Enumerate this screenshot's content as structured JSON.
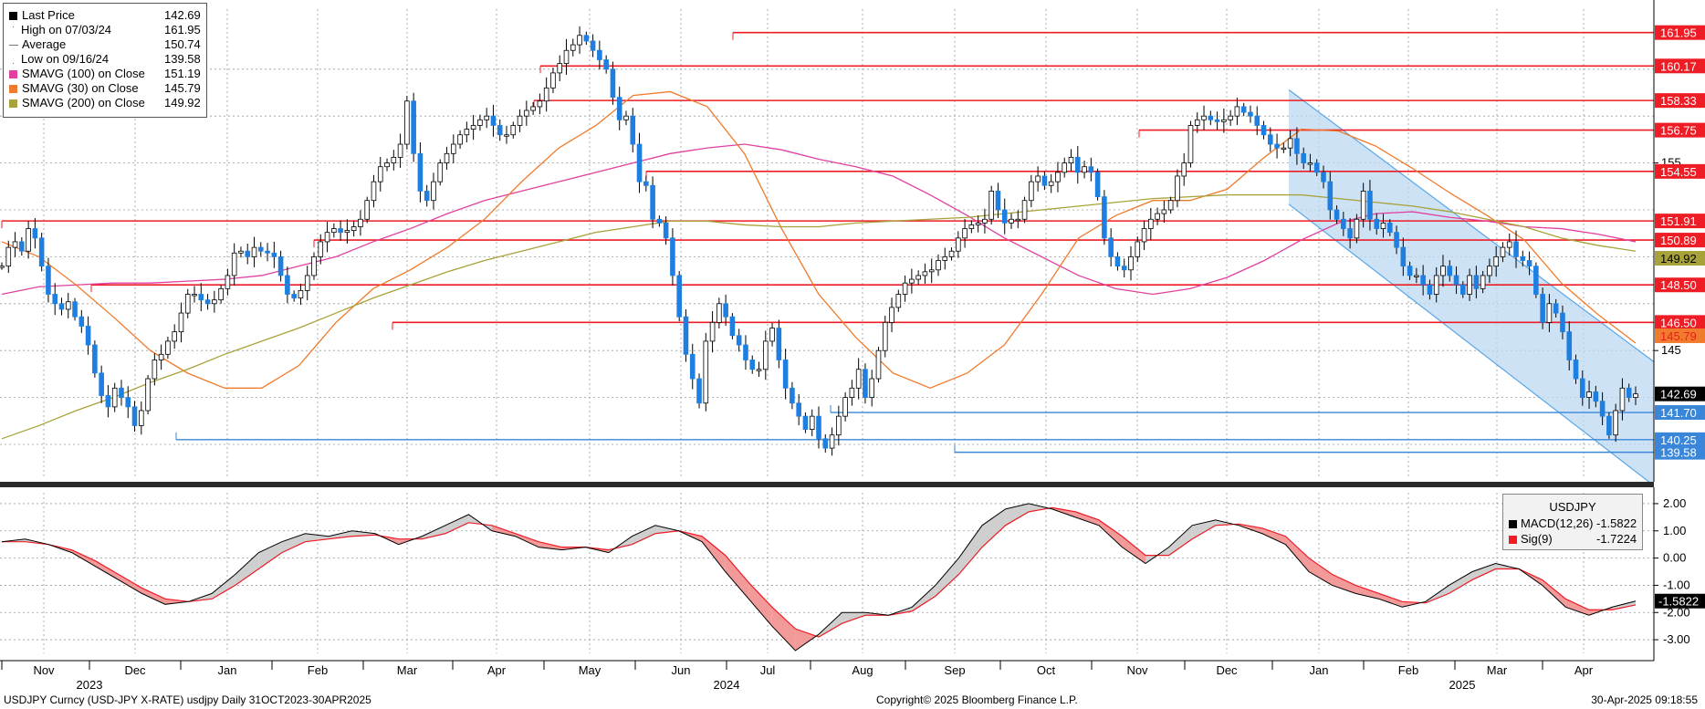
{
  "colors": {
    "candle_up": "#ffffff",
    "candle_down": "#1f7fe0",
    "price_line": "#000000",
    "resistance": "#ee1c25",
    "support": "#3a86d8",
    "channel_fill": "#bcd8f2",
    "channel_stroke": "#5aa6e6",
    "sma100": "#e040a0",
    "sma30": "#f07b2c",
    "sma200": "#a8a23a",
    "macd_line": "#000000",
    "signal_line": "#ee1c25",
    "macd_up_fill": "#cfcfcf",
    "macd_down_fill": "#f29a9a"
  },
  "legend": {
    "rows": [
      {
        "icon": "black-square-icon",
        "label": "Last Price",
        "value": "142.69"
      },
      {
        "icon": "high-marker-icon",
        "label": "High on 07/03/24",
        "value": "161.95"
      },
      {
        "icon": "average-marker-icon",
        "label": "Average",
        "value": "150.74"
      },
      {
        "icon": "low-marker-icon",
        "label": "Low on 09/16/24",
        "value": "139.58"
      },
      {
        "icon": "magenta-square-icon",
        "label": "SMAVG (100)  on Close",
        "value": "151.19"
      },
      {
        "icon": "orange-square-icon",
        "label": "SMAVG (30)  on Close",
        "value": "145.79"
      },
      {
        "icon": "olive-square-icon",
        "label": "SMAVG (200)  on Close",
        "value": "149.92"
      }
    ]
  },
  "macd_legend": {
    "title": "USDJPY",
    "rows": [
      {
        "label": "MACD(12,26)",
        "value": "-1.5822"
      },
      {
        "label": "Sig(9)",
        "value": "-1.7224"
      }
    ]
  },
  "footer": {
    "left": "USDJPY Curncy (USD-JPY X-RATE) usdjpy  Daily 31OCT2023-30APR2025",
    "center": "Copyright© 2025 Bloomberg Finance L.P.",
    "right": "30-Apr-2025 09:18:55"
  },
  "chart_data": [
    {
      "type": "candlestick",
      "title": "",
      "x_axis": {
        "months": [
          "Nov",
          "Dec",
          "Jan",
          "Feb",
          "Mar",
          "Apr",
          "May",
          "Jun",
          "Jul",
          "Aug",
          "Sep",
          "Oct",
          "Nov",
          "Dec",
          "Jan",
          "Feb",
          "Mar",
          "Apr"
        ],
        "years": [
          "2023",
          "2024",
          "2025"
        ]
      },
      "y_axis": {
        "ticks": [
          145,
          155
        ],
        "range": [
          138,
          163
        ]
      },
      "grid": true,
      "price_closes": [
        149.5,
        150.5,
        150.8,
        150.3,
        151.5,
        151.0,
        149.5,
        148.0,
        147.5,
        147.2,
        147.6,
        146.8,
        146.3,
        145.3,
        143.8,
        142.6,
        142.0,
        143.0,
        142.5,
        142.0,
        141.0,
        141.8,
        143.5,
        144.5,
        144.8,
        145.5,
        146.0,
        147.0,
        148.0,
        148.0,
        147.7,
        147.5,
        147.7,
        148.3,
        149.0,
        150.2,
        150.3,
        150.0,
        150.5,
        150.3,
        150.2,
        150.0,
        149.0,
        148.0,
        147.8,
        148.2,
        149.0,
        150.0,
        150.8,
        151.3,
        151.5,
        151.3,
        151.4,
        151.6,
        152.0,
        153.0,
        154.0,
        154.8,
        155.0,
        155.3,
        156.0,
        158.3,
        155.5,
        153.5,
        153.0,
        154.0,
        155.0,
        155.5,
        156.0,
        156.5,
        156.8,
        157.0,
        157.3,
        157.5,
        157.0,
        156.5,
        156.5,
        157.0,
        157.5,
        157.8,
        158.0,
        158.3,
        159.0,
        159.8,
        160.3,
        161.0,
        161.3,
        161.8,
        161.5,
        161.0,
        160.5,
        160.0,
        158.5,
        157.3,
        157.5,
        156.0,
        154.0,
        153.8,
        152.0,
        151.8,
        151.0,
        149.0,
        146.8,
        144.8,
        143.5,
        142.2,
        145.5,
        146.5,
        147.5,
        146.8,
        145.8,
        145.3,
        144.5,
        144.0,
        144.0,
        145.5,
        146.2,
        144.5,
        143.0,
        142.2,
        141.5,
        140.8,
        141.5,
        140.3,
        139.8,
        140.5,
        141.5,
        142.5,
        143.0,
        144.0,
        142.5,
        143.5,
        145.0,
        146.5,
        147.3,
        148.0,
        148.6,
        148.8,
        149.0,
        149.2,
        149.3,
        149.8,
        150.0,
        150.3,
        151.0,
        151.5,
        151.7,
        151.8,
        152.0,
        153.5,
        152.5,
        151.8,
        152.0,
        152.0,
        153.0,
        154.0,
        154.3,
        153.8,
        154.0,
        154.5,
        155.0,
        155.3,
        154.5,
        154.8,
        154.5,
        153.2,
        151.0,
        150.0,
        149.5,
        149.3,
        150.0,
        150.8,
        151.5,
        152.0,
        152.3,
        152.5,
        153.0,
        154.3,
        155.0,
        157.0,
        157.3,
        157.5,
        157.3,
        157.2,
        157.3,
        157.5,
        158.0,
        157.7,
        157.5,
        157.0,
        156.5,
        156.0,
        155.8,
        155.8,
        156.3,
        155.5,
        155.0,
        155.0,
        154.5,
        154.0,
        152.5,
        152.0,
        151.5,
        151.0,
        152.0,
        153.5,
        152.0,
        151.5,
        151.8,
        151.3,
        150.5,
        149.5,
        149.0,
        149.0,
        148.5,
        148.0,
        149.0,
        149.5,
        149.0,
        148.5,
        148.0,
        149.0,
        148.3,
        149.0,
        149.5,
        150.0,
        150.5,
        150.8,
        150.0,
        149.8,
        149.5,
        148.0,
        146.5,
        147.5,
        147.0,
        146.0,
        144.5,
        143.5,
        142.5,
        142.8,
        142.3,
        141.5,
        140.5,
        141.8,
        143.0,
        142.5,
        142.69
      ]
    },
    {
      "type": "line",
      "name": "Horizontal levels",
      "resistance_levels": [
        161.95,
        160.17,
        158.33,
        156.75,
        154.55,
        151.91,
        150.89,
        148.5,
        146.5
      ],
      "support_levels": [
        141.7,
        140.25,
        139.58
      ],
      "axis_tags": [
        {
          "label": "161.95",
          "kind": "resistance"
        },
        {
          "label": "160.17",
          "kind": "resistance"
        },
        {
          "label": "158.33",
          "kind": "resistance"
        },
        {
          "label": "156.75",
          "kind": "resistance"
        },
        {
          "label": "154.55",
          "kind": "resistance"
        },
        {
          "label": "151.91",
          "kind": "resistance"
        },
        {
          "label": "150.89",
          "kind": "resistance"
        },
        {
          "label": "149.92",
          "kind": "sma200"
        },
        {
          "label": "148.50",
          "kind": "resistance"
        },
        {
          "label": "146.50",
          "kind": "resistance"
        },
        {
          "label": "145.79",
          "kind": "sma30"
        },
        {
          "label": "142.69",
          "kind": "last"
        },
        {
          "label": "141.70",
          "kind": "support"
        },
        {
          "label": "140.25",
          "kind": "support"
        },
        {
          "label": "139.58",
          "kind": "support"
        }
      ]
    },
    {
      "type": "line",
      "name": "Moving averages",
      "series": [
        {
          "name": "SMAVG (100)  on Close",
          "values": [
            148.0,
            148.4,
            148.5,
            148.6,
            148.6,
            148.7,
            148.8,
            149.0,
            149.5,
            150.0,
            150.8,
            151.5,
            152.3,
            153.0,
            153.5,
            154.0,
            154.5,
            155.0,
            155.5,
            155.8,
            156.0,
            155.7,
            155.2,
            154.8,
            154.3,
            153.3,
            152.2,
            151.0,
            150.0,
            149.0,
            148.3,
            148.0,
            148.3,
            148.9,
            149.8,
            150.9,
            151.8,
            152.3,
            152.4,
            152.1,
            151.9,
            151.6,
            151.5,
            151.2,
            150.8
          ]
        },
        {
          "name": "SMAVG (30)  on Close",
          "values": [
            150.8,
            150.0,
            148.5,
            146.8,
            145.0,
            143.8,
            143.0,
            143.0,
            144.2,
            146.5,
            148.3,
            149.3,
            150.5,
            152.0,
            154.0,
            155.8,
            157.0,
            158.6,
            158.8,
            158.0,
            155.5,
            151.5,
            148.0,
            145.7,
            143.8,
            143.0,
            143.8,
            145.3,
            148.0,
            151.0,
            152.2,
            153.0,
            153.0,
            153.6,
            155.3,
            156.8,
            156.7,
            155.9,
            154.7,
            153.4,
            152.2,
            150.9,
            148.6,
            146.9,
            145.4
          ]
        },
        {
          "name": "SMAVG (200)  on Close",
          "values": [
            140.3,
            141.0,
            141.8,
            142.5,
            143.3,
            144.0,
            144.8,
            145.5,
            146.2,
            147.0,
            147.8,
            148.5,
            149.2,
            149.8,
            150.3,
            150.8,
            151.3,
            151.6,
            151.9,
            151.9,
            151.7,
            151.6,
            151.6,
            151.8,
            151.9,
            152.0,
            152.1,
            152.3,
            152.5,
            152.7,
            152.9,
            153.1,
            153.2,
            153.3,
            153.3,
            153.3,
            153.1,
            152.9,
            152.7,
            152.4,
            152.0,
            151.6,
            151.0,
            150.6,
            150.3
          ]
        }
      ]
    },
    {
      "type": "line",
      "name": "USDJPY",
      "y_axis": {
        "ticks": [
          "2.00",
          "1.00",
          "0.00",
          "-1.00",
          "-2.00",
          "-3.00"
        ],
        "range": [
          -3.5,
          2.4
        ]
      },
      "series": [
        {
          "name": "MACD(12,26)",
          "values": [
            0.6,
            0.7,
            0.5,
            0.2,
            -0.3,
            -0.8,
            -1.3,
            -1.7,
            -1.6,
            -1.3,
            -0.6,
            0.2,
            0.6,
            0.9,
            0.8,
            1.0,
            0.9,
            0.5,
            0.8,
            1.2,
            1.6,
            1.0,
            0.8,
            0.4,
            0.3,
            0.4,
            0.2,
            0.8,
            1.2,
            1.0,
            0.6,
            -0.5,
            -1.5,
            -2.5,
            -3.4,
            -2.8,
            -2.0,
            -2.0,
            -2.1,
            -1.8,
            -1.0,
            0.0,
            1.2,
            1.8,
            2.0,
            1.8,
            1.5,
            1.2,
            0.4,
            -0.2,
            0.4,
            1.2,
            1.4,
            1.2,
            0.9,
            0.5,
            -0.5,
            -1.0,
            -1.3,
            -1.5,
            -1.8,
            -1.6,
            -1.0,
            -0.5,
            -0.2,
            -0.4,
            -1.0,
            -1.8,
            -2.1,
            -1.8,
            -1.58
          ]
        },
        {
          "name": "Sig(9)",
          "values": [
            0.6,
            0.6,
            0.5,
            0.3,
            -0.1,
            -0.6,
            -1.1,
            -1.5,
            -1.6,
            -1.5,
            -1.0,
            -0.4,
            0.2,
            0.6,
            0.7,
            0.8,
            0.85,
            0.7,
            0.7,
            0.9,
            1.3,
            1.2,
            0.9,
            0.6,
            0.4,
            0.4,
            0.3,
            0.5,
            0.9,
            1.0,
            0.8,
            0.1,
            -0.9,
            -1.8,
            -2.6,
            -2.9,
            -2.4,
            -2.1,
            -2.1,
            -1.95,
            -1.4,
            -0.6,
            0.4,
            1.2,
            1.7,
            1.85,
            1.7,
            1.4,
            0.8,
            0.1,
            0.1,
            0.7,
            1.2,
            1.25,
            1.1,
            0.8,
            0.0,
            -0.6,
            -1.0,
            -1.3,
            -1.6,
            -1.65,
            -1.3,
            -0.8,
            -0.4,
            -0.4,
            -0.8,
            -1.5,
            -1.9,
            -1.9,
            -1.72
          ]
        }
      ]
    }
  ]
}
